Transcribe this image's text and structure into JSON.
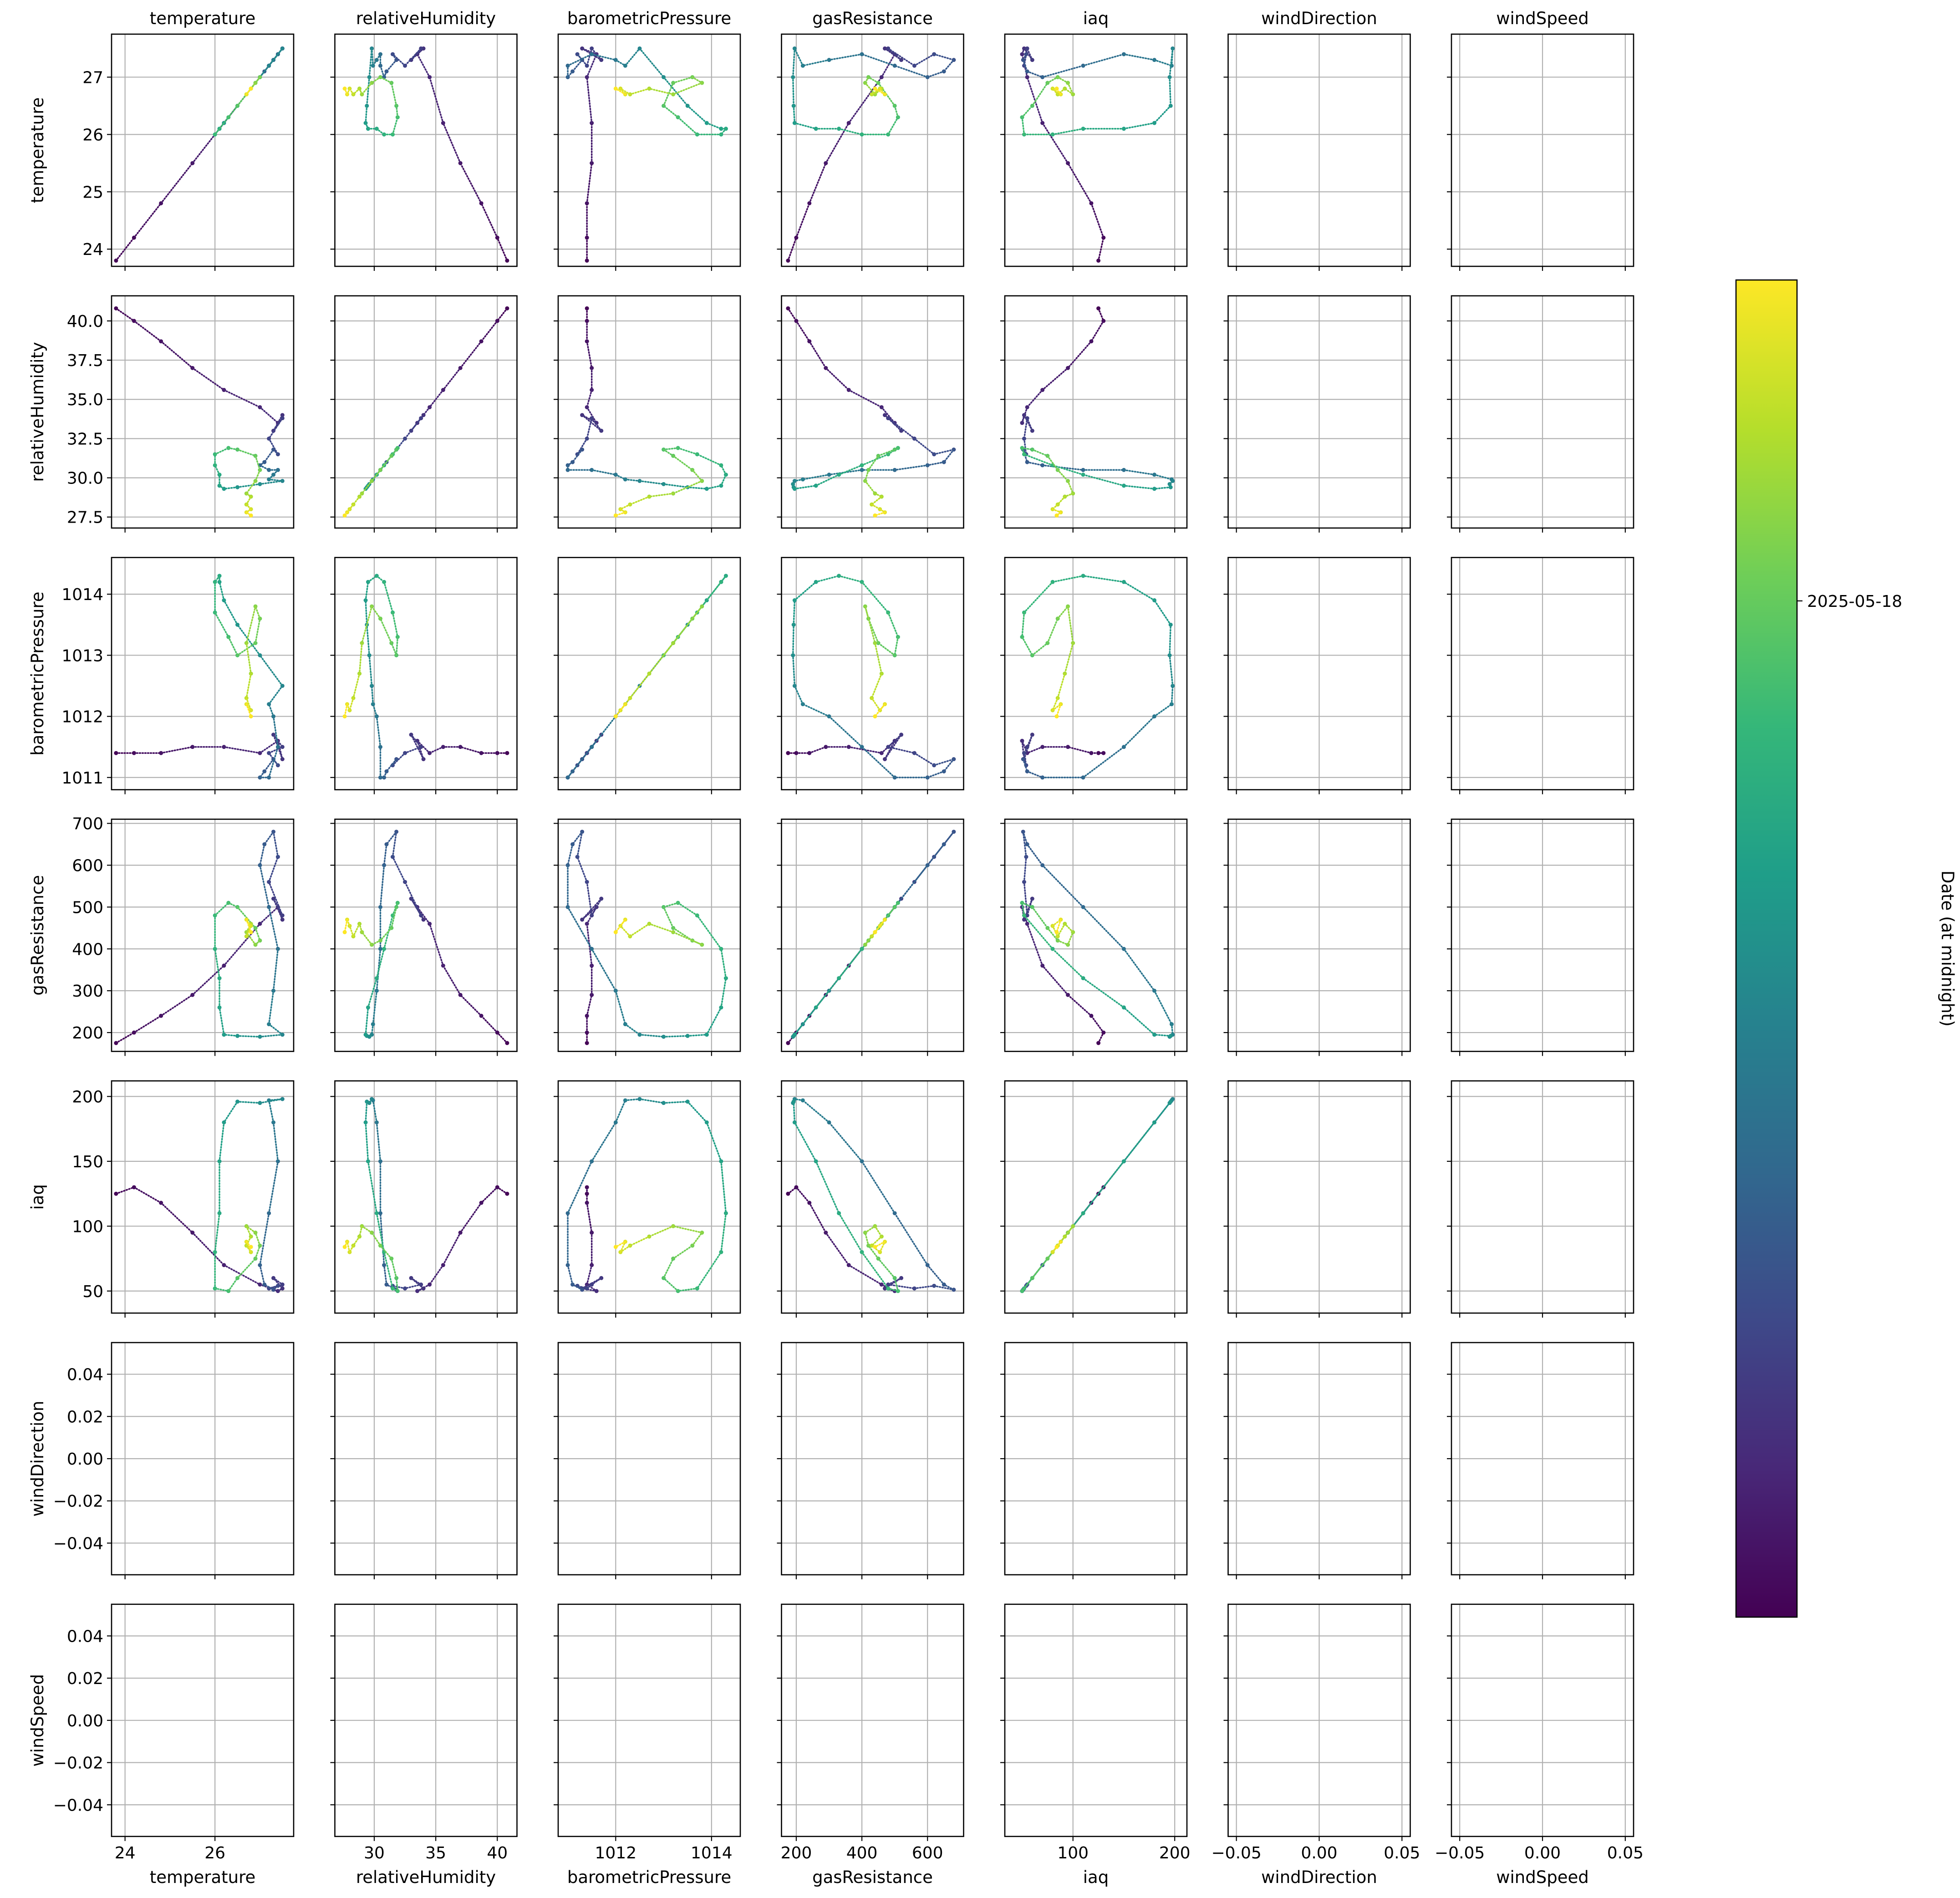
{
  "chart_data": {
    "type": "scatter",
    "title": "",
    "variables": [
      "temperature",
      "relativeHumidity",
      "barometricPressure",
      "gasResistance",
      "iaq",
      "windDirection",
      "windSpeed"
    ],
    "axes": {
      "temperature": {
        "lim": [
          23.7,
          27.75
        ],
        "ticks": [
          24,
          26
        ],
        "row_ticks": [
          24,
          25,
          26,
          27
        ],
        "tick_labels": [
          "24",
          "26"
        ],
        "row_tick_labels": [
          "24",
          "25",
          "26",
          "27"
        ]
      },
      "relativeHumidity": {
        "lim": [
          26.8,
          41.6
        ],
        "ticks": [
          30,
          35,
          40
        ],
        "row_ticks": [
          27.5,
          30.0,
          32.5,
          35.0,
          37.5,
          40.0
        ],
        "tick_labels": [
          "30",
          "35",
          "40"
        ],
        "row_tick_labels": [
          "27.5",
          "30.0",
          "32.5",
          "35.0",
          "37.5",
          "40.0"
        ]
      },
      "barometricPressure": {
        "lim": [
          1010.8,
          1014.6
        ],
        "ticks": [
          1012,
          1014
        ],
        "row_ticks": [
          1011,
          1012,
          1013,
          1014
        ],
        "tick_labels": [
          "1012",
          "1014"
        ],
        "row_tick_labels": [
          "1011",
          "1012",
          "1013",
          "1014"
        ]
      },
      "gasResistance": {
        "lim": [
          155,
          710
        ],
        "ticks": [
          200,
          400,
          600
        ],
        "row_ticks": [
          200,
          300,
          400,
          500,
          600,
          700
        ],
        "tick_labels": [
          "200",
          "400",
          "600"
        ],
        "row_tick_labels": [
          "200",
          "300",
          "400",
          "500",
          "600",
          "700"
        ]
      },
      "iaq": {
        "lim": [
          33,
          212
        ],
        "ticks": [
          100,
          200
        ],
        "row_ticks": [
          50,
          100,
          150,
          200
        ],
        "tick_labels": [
          "100",
          "200"
        ],
        "row_tick_labels": [
          "50",
          "100",
          "150",
          "200"
        ]
      },
      "windDirection": {
        "lim": [
          -0.055,
          0.055
        ],
        "ticks": [
          -0.05,
          0.0,
          0.05
        ],
        "row_ticks": [
          -0.04,
          -0.02,
          0.0,
          0.02,
          0.04
        ],
        "tick_labels": [
          "−0.05",
          "0.00",
          "0.05"
        ],
        "row_tick_labels": [
          "−0.04",
          "−0.02",
          "0.00",
          "0.02",
          "0.04"
        ]
      },
      "windSpeed": {
        "lim": [
          -0.055,
          0.055
        ],
        "ticks": [
          -0.05,
          0.0,
          0.05
        ],
        "row_ticks": [
          -0.04,
          -0.02,
          0.0,
          0.02,
          0.04
        ],
        "tick_labels": [
          "−0.05",
          "0.00",
          "0.05"
        ],
        "row_tick_labels": [
          "−0.04",
          "−0.02",
          "0.00",
          "0.02",
          "0.04"
        ]
      }
    },
    "grid": true,
    "colormap": "viridis",
    "colormap_colors": [
      "#440154",
      "#482878",
      "#3e4989",
      "#31688e",
      "#26828e",
      "#1f9e89",
      "#35b779",
      "#6ece58",
      "#b5de2b",
      "#fde725"
    ],
    "colorbar": {
      "label": "Date (at midnight)",
      "ticks": [
        {
          "label": "2025-05-18",
          "position": 0.76
        }
      ]
    },
    "series": [
      {
        "color_value": 0.0,
        "temperature": 23.8,
        "relativeHumidity": 40.8,
        "barometricPressure": 1011.4,
        "gasResistance": 175,
        "iaq": 125
      },
      {
        "color_value": 0.02,
        "temperature": 24.2,
        "relativeHumidity": 40.0,
        "barometricPressure": 1011.4,
        "gasResistance": 200,
        "iaq": 130
      },
      {
        "color_value": 0.04,
        "temperature": 24.8,
        "relativeHumidity": 38.7,
        "barometricPressure": 1011.4,
        "gasResistance": 240,
        "iaq": 118
      },
      {
        "color_value": 0.06,
        "temperature": 25.5,
        "relativeHumidity": 37.0,
        "barometricPressure": 1011.5,
        "gasResistance": 290,
        "iaq": 95
      },
      {
        "color_value": 0.08,
        "temperature": 26.2,
        "relativeHumidity": 35.6,
        "barometricPressure": 1011.5,
        "gasResistance": 360,
        "iaq": 70
      },
      {
        "color_value": 0.1,
        "temperature": 27.0,
        "relativeHumidity": 34.5,
        "barometricPressure": 1011.4,
        "gasResistance": 460,
        "iaq": 55
      },
      {
        "color_value": 0.12,
        "temperature": 27.4,
        "relativeHumidity": 33.5,
        "barometricPressure": 1011.6,
        "gasResistance": 500,
        "iaq": 50
      },
      {
        "color_value": 0.14,
        "temperature": 27.5,
        "relativeHumidity": 34.0,
        "barometricPressure": 1011.3,
        "gasResistance": 470,
        "iaq": 52
      },
      {
        "color_value": 0.16,
        "temperature": 27.3,
        "relativeHumidity": 33.0,
        "barometricPressure": 1011.7,
        "gasResistance": 520,
        "iaq": 60
      },
      {
        "color_value": 0.18,
        "temperature": 27.5,
        "relativeHumidity": 33.8,
        "barometricPressure": 1011.5,
        "gasResistance": 480,
        "iaq": 55
      },
      {
        "color_value": 0.2,
        "temperature": 27.2,
        "relativeHumidity": 32.5,
        "barometricPressure": 1011.4,
        "gasResistance": 560,
        "iaq": 52
      },
      {
        "color_value": 0.22,
        "temperature": 27.4,
        "relativeHumidity": 31.5,
        "barometricPressure": 1011.2,
        "gasResistance": 620,
        "iaq": 54
      },
      {
        "color_value": 0.25,
        "temperature": 27.3,
        "relativeHumidity": 31.8,
        "barometricPressure": 1011.3,
        "gasResistance": 680,
        "iaq": 51
      },
      {
        "color_value": 0.28,
        "temperature": 27.1,
        "relativeHumidity": 31.0,
        "barometricPressure": 1011.1,
        "gasResistance": 650,
        "iaq": 55
      },
      {
        "color_value": 0.3,
        "temperature": 27.0,
        "relativeHumidity": 30.8,
        "barometricPressure": 1011.0,
        "gasResistance": 600,
        "iaq": 70
      },
      {
        "color_value": 0.33,
        "temperature": 27.2,
        "relativeHumidity": 30.5,
        "barometricPressure": 1011.0,
        "gasResistance": 500,
        "iaq": 110
      },
      {
        "color_value": 0.36,
        "temperature": 27.4,
        "relativeHumidity": 30.5,
        "barometricPressure": 1011.5,
        "gasResistance": 400,
        "iaq": 150
      },
      {
        "color_value": 0.39,
        "temperature": 27.3,
        "relativeHumidity": 30.2,
        "barometricPressure": 1012.0,
        "gasResistance": 300,
        "iaq": 180
      },
      {
        "color_value": 0.42,
        "temperature": 27.2,
        "relativeHumidity": 29.9,
        "barometricPressure": 1012.2,
        "gasResistance": 220,
        "iaq": 197
      },
      {
        "color_value": 0.45,
        "temperature": 27.5,
        "relativeHumidity": 29.8,
        "barometricPressure": 1012.5,
        "gasResistance": 195,
        "iaq": 198
      },
      {
        "color_value": 0.48,
        "temperature": 27.0,
        "relativeHumidity": 29.6,
        "barometricPressure": 1013.0,
        "gasResistance": 190,
        "iaq": 195
      },
      {
        "color_value": 0.51,
        "temperature": 26.5,
        "relativeHumidity": 29.4,
        "barometricPressure": 1013.5,
        "gasResistance": 192,
        "iaq": 196
      },
      {
        "color_value": 0.54,
        "temperature": 26.2,
        "relativeHumidity": 29.3,
        "barometricPressure": 1013.9,
        "gasResistance": 195,
        "iaq": 180
      },
      {
        "color_value": 0.57,
        "temperature": 26.1,
        "relativeHumidity": 29.5,
        "barometricPressure": 1014.2,
        "gasResistance": 260,
        "iaq": 150
      },
      {
        "color_value": 0.6,
        "temperature": 26.1,
        "relativeHumidity": 30.2,
        "barometricPressure": 1014.3,
        "gasResistance": 330,
        "iaq": 110
      },
      {
        "color_value": 0.63,
        "temperature": 26.0,
        "relativeHumidity": 30.8,
        "barometricPressure": 1014.2,
        "gasResistance": 400,
        "iaq": 80
      },
      {
        "color_value": 0.66,
        "temperature": 26.0,
        "relativeHumidity": 31.5,
        "barometricPressure": 1013.7,
        "gasResistance": 480,
        "iaq": 52
      },
      {
        "color_value": 0.69,
        "temperature": 26.3,
        "relativeHumidity": 31.9,
        "barometricPressure": 1013.3,
        "gasResistance": 510,
        "iaq": 50
      },
      {
        "color_value": 0.72,
        "temperature": 26.5,
        "relativeHumidity": 31.8,
        "barometricPressure": 1013.0,
        "gasResistance": 500,
        "iaq": 60
      },
      {
        "color_value": 0.75,
        "temperature": 26.9,
        "relativeHumidity": 31.4,
        "barometricPressure": 1013.2,
        "gasResistance": 450,
        "iaq": 75
      },
      {
        "color_value": 0.78,
        "temperature": 27.0,
        "relativeHumidity": 30.5,
        "barometricPressure": 1013.6,
        "gasResistance": 420,
        "iaq": 85
      },
      {
        "color_value": 0.81,
        "temperature": 26.9,
        "relativeHumidity": 29.8,
        "barometricPressure": 1013.8,
        "gasResistance": 410,
        "iaq": 95
      },
      {
        "color_value": 0.84,
        "temperature": 26.7,
        "relativeHumidity": 29.0,
        "barometricPressure": 1013.2,
        "gasResistance": 440,
        "iaq": 100
      },
      {
        "color_value": 0.87,
        "temperature": 26.8,
        "relativeHumidity": 28.8,
        "barometricPressure": 1012.7,
        "gasResistance": 460,
        "iaq": 92
      },
      {
        "color_value": 0.9,
        "temperature": 26.7,
        "relativeHumidity": 28.3,
        "barometricPressure": 1012.3,
        "gasResistance": 430,
        "iaq": 85
      },
      {
        "color_value": 0.93,
        "temperature": 26.8,
        "relativeHumidity": 28.0,
        "barometricPressure": 1012.1,
        "gasResistance": 455,
        "iaq": 80
      },
      {
        "color_value": 0.96,
        "temperature": 26.7,
        "relativeHumidity": 27.8,
        "barometricPressure": 1012.2,
        "gasResistance": 470,
        "iaq": 88
      },
      {
        "color_value": 1.0,
        "temperature": 26.8,
        "relativeHumidity": 27.6,
        "barometricPressure": 1012.0,
        "gasResistance": 440,
        "iaq": 84
      }
    ]
  }
}
